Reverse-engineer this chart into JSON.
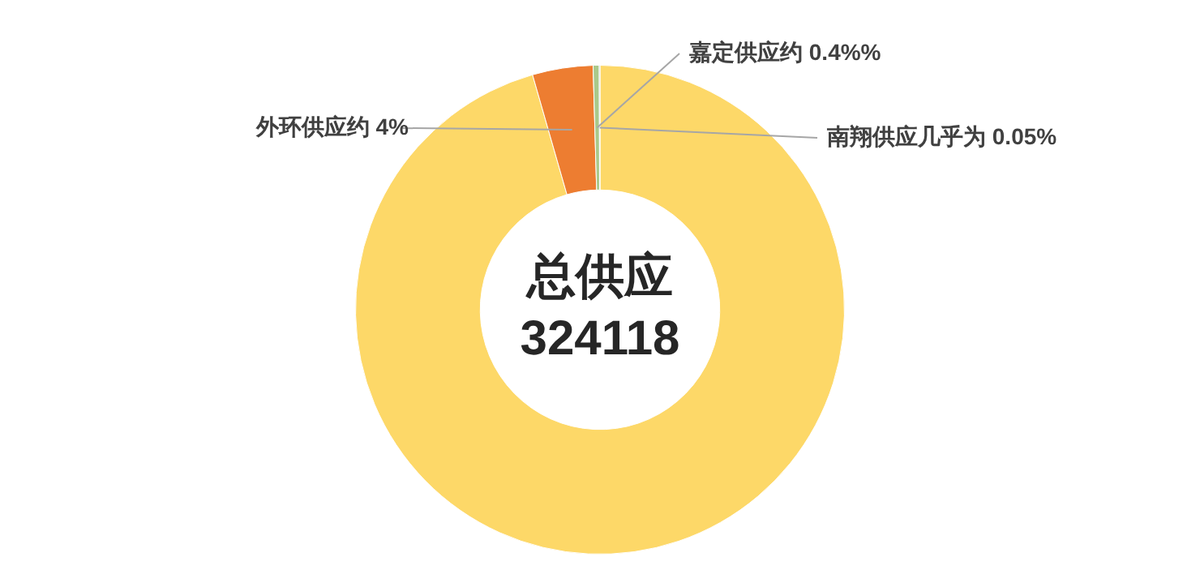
{
  "chart_data": {
    "type": "donut",
    "categories": [
      null,
      "外环供应约 4%",
      "嘉定供应约 0.4%%",
      "南翔供应几乎为 0.05%"
    ],
    "values": [
      95.55,
      4,
      0.4,
      0.05
    ],
    "colors": [
      "#fdd868",
      "#ed7d31",
      "#a9c98b",
      "#a5a5a5"
    ],
    "annotations": [
      "总供应",
      "324118"
    ],
    "legend": false
  }
}
